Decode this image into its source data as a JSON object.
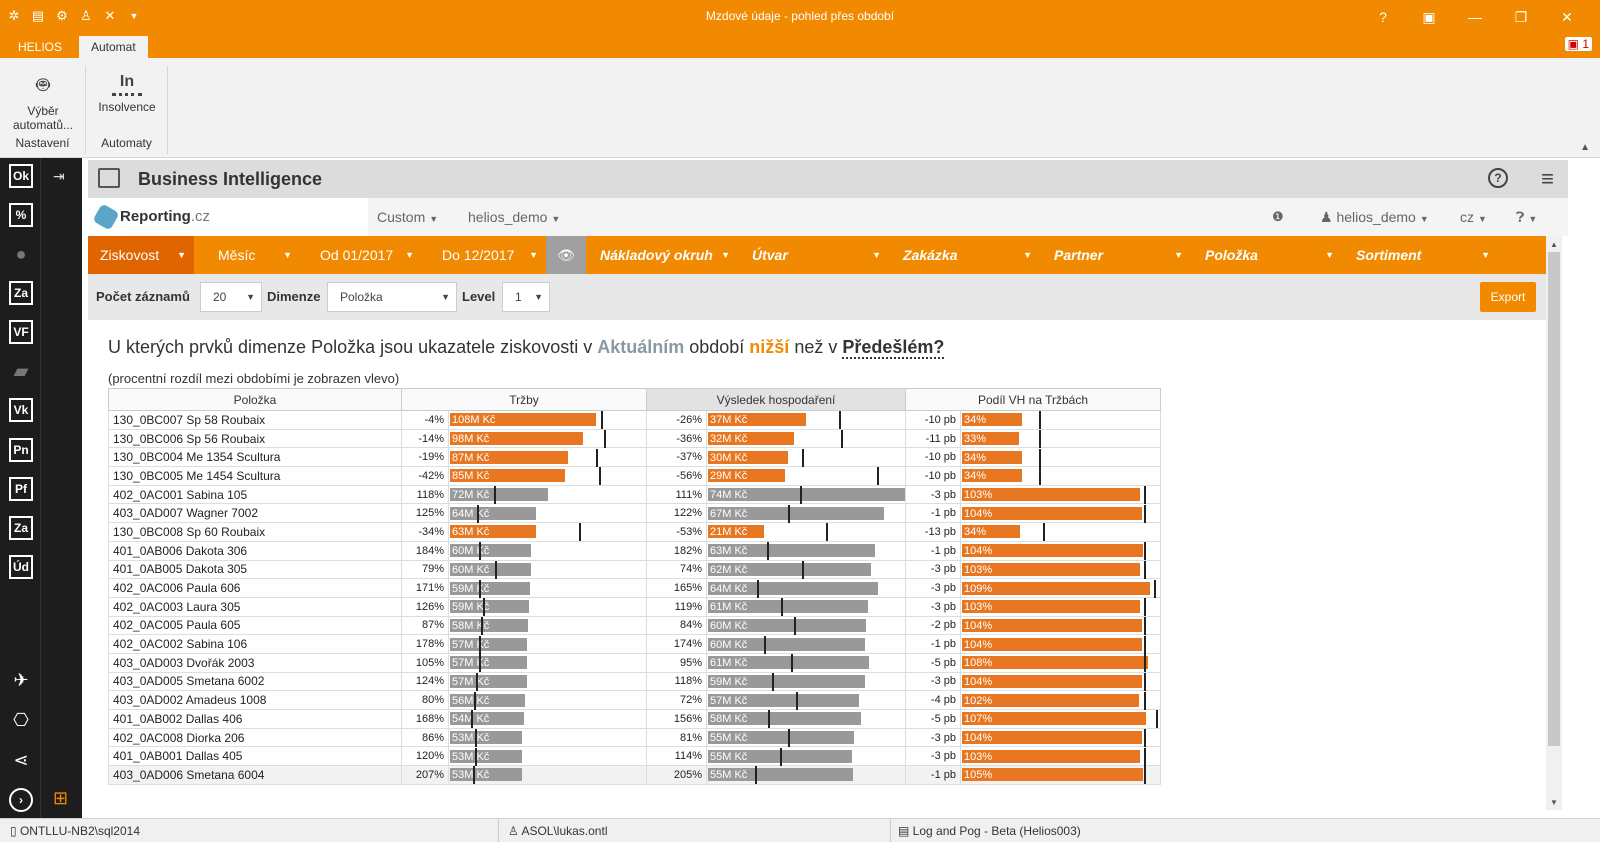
{
  "window": {
    "title": "Mzdové údaje - pohled přes období"
  },
  "ribbon": {
    "tabs": [
      {
        "label": "HELIOS"
      },
      {
        "label": "Automat"
      }
    ],
    "notification_count": "1",
    "groups": [
      {
        "name": "Nastavení",
        "button_label": "Výběr automatů..."
      },
      {
        "name": "Automaty",
        "button_label": "Insolvence",
        "icon_text": "In"
      }
    ]
  },
  "sidebar": {
    "items": [
      {
        "label": "Ok"
      },
      {
        "label": "%"
      },
      {
        "label": ""
      },
      {
        "label": "Za"
      },
      {
        "label": "VF"
      },
      {
        "label": ""
      },
      {
        "label": "Vk"
      },
      {
        "label": "Pn"
      },
      {
        "label": "Pf"
      },
      {
        "label": "Za"
      },
      {
        "label": "Úd"
      }
    ]
  },
  "bi": {
    "title": "Business Intelligence"
  },
  "reporting": {
    "logo_main": "Reporting",
    "logo_suffix": ".cz",
    "nav": {
      "custom": "Custom",
      "user": "helios_demo",
      "account": "helios_demo",
      "lang": "cz"
    }
  },
  "filters": {
    "ziskovost": "Ziskovost",
    "mesic": "Měsíc",
    "od": "Od 01/2017",
    "do": "Do 12/2017",
    "dimensions": [
      "Nákladový okruh",
      "Útvar",
      "Zakázka",
      "Partner",
      "Položka",
      "Sortiment"
    ]
  },
  "controls": {
    "pocet_label": "Počet záznamů",
    "pocet_value": "20",
    "dimenze_label": "Dimenze",
    "dimenze_value": "Položka",
    "level_label": "Level",
    "level_value": "1",
    "export_label": "Export"
  },
  "question": {
    "part1": "U kterých prvků dimenze Položka jsou ukazatele ziskovosti v ",
    "aktualnim": "Aktuálním",
    "part2": " období ",
    "nizsi": "nižší",
    "part3": " než v ",
    "predeslem": "Předešlém?"
  },
  "subnote": "(procentní rozdíl mezi obdobími je zobrazen vlevo)",
  "table": {
    "headers": {
      "polozka": "Položka",
      "trzby": "Tržby",
      "vh": "Výsledek hospodaření",
      "podil": "Podíl VH na Tržbách"
    },
    "rows": [
      {
        "name": "130_0BC007 Sp 58 Roubaix",
        "t_pct": "-4%",
        "t_val": "108M Kč",
        "v_pct": "-26%",
        "v_val": "37M Kč",
        "p_pct": "-10 pb",
        "p_val": "34%"
      },
      {
        "name": "130_0BC006 Sp 56 Roubaix",
        "t_pct": "-14%",
        "t_val": "98M Kč",
        "v_pct": "-36%",
        "v_val": "32M Kč",
        "p_pct": "-11 pb",
        "p_val": "33%"
      },
      {
        "name": "130_0BC004 Me 1354 Scultura",
        "t_pct": "-19%",
        "t_val": "87M Kč",
        "v_pct": "-37%",
        "v_val": "30M Kč",
        "p_pct": "-10 pb",
        "p_val": "34%"
      },
      {
        "name": "130_0BC005 Me 1454 Scultura",
        "t_pct": "-42%",
        "t_val": "85M Kč",
        "v_pct": "-56%",
        "v_val": "29M Kč",
        "p_pct": "-10 pb",
        "p_val": "34%"
      },
      {
        "name": "402_0AC001 Sabina 105",
        "t_pct": "118%",
        "t_val": "72M Kč",
        "v_pct": "111%",
        "v_val": "74M Kč",
        "p_pct": "-3 pb",
        "p_val": "103%"
      },
      {
        "name": "403_0AD007 Wagner 7002",
        "t_pct": "125%",
        "t_val": "64M Kč",
        "v_pct": "122%",
        "v_val": "67M Kč",
        "p_pct": "-1 pb",
        "p_val": "104%"
      },
      {
        "name": "130_0BC008 Sp 60 Roubaix",
        "t_pct": "-34%",
        "t_val": "63M Kč",
        "v_pct": "-53%",
        "v_val": "21M Kč",
        "p_pct": "-13 pb",
        "p_val": "34%"
      },
      {
        "name": "401_0AB006 Dakota 306",
        "t_pct": "184%",
        "t_val": "60M Kč",
        "v_pct": "182%",
        "v_val": "63M Kč",
        "p_pct": "-1 pb",
        "p_val": "104%"
      },
      {
        "name": "401_0AB005 Dakota 305",
        "t_pct": "79%",
        "t_val": "60M Kč",
        "v_pct": "74%",
        "v_val": "62M Kč",
        "p_pct": "-3 pb",
        "p_val": "103%"
      },
      {
        "name": "402_0AC006 Paula 606",
        "t_pct": "171%",
        "t_val": "59M Kč",
        "v_pct": "165%",
        "v_val": "64M Kč",
        "p_pct": "-3 pb",
        "p_val": "109%"
      },
      {
        "name": "402_0AC003 Laura 305",
        "t_pct": "126%",
        "t_val": "59M Kč",
        "v_pct": "119%",
        "v_val": "61M Kč",
        "p_pct": "-3 pb",
        "p_val": "103%"
      },
      {
        "name": "402_0AC005 Paula 605",
        "t_pct": "87%",
        "t_val": "58M Kč",
        "v_pct": "84%",
        "v_val": "60M Kč",
        "p_pct": "-2 pb",
        "p_val": "104%"
      },
      {
        "name": "402_0AC002 Sabina 106",
        "t_pct": "178%",
        "t_val": "57M Kč",
        "v_pct": "174%",
        "v_val": "60M Kč",
        "p_pct": "-1 pb",
        "p_val": "104%"
      },
      {
        "name": "403_0AD003 Dvořák 2003",
        "t_pct": "105%",
        "t_val": "57M Kč",
        "v_pct": "95%",
        "v_val": "61M Kč",
        "p_pct": "-5 pb",
        "p_val": "108%"
      },
      {
        "name": "403_0AD005 Smetana 6002",
        "t_pct": "124%",
        "t_val": "57M Kč",
        "v_pct": "118%",
        "v_val": "59M Kč",
        "p_pct": "-3 pb",
        "p_val": "104%"
      },
      {
        "name": "403_0AD002 Amadeus 1008",
        "t_pct": "80%",
        "t_val": "56M Kč",
        "v_pct": "72%",
        "v_val": "57M Kč",
        "p_pct": "-4 pb",
        "p_val": "102%"
      },
      {
        "name": "401_0AB002 Dallas 406",
        "t_pct": "168%",
        "t_val": "54M Kč",
        "v_pct": "156%",
        "v_val": "58M Kč",
        "p_pct": "-5 pb",
        "p_val": "107%"
      },
      {
        "name": "402_0AC008 Diorka 206",
        "t_pct": "86%",
        "t_val": "53M Kč",
        "v_pct": "81%",
        "v_val": "55M Kč",
        "p_pct": "-3 pb",
        "p_val": "104%"
      },
      {
        "name": "401_0AB001 Dallas 405",
        "t_pct": "120%",
        "t_val": "53M Kč",
        "v_pct": "114%",
        "v_val": "55M Kč",
        "p_pct": "-3 pb",
        "p_val": "103%"
      },
      {
        "name": "403_0AD006 Smetana 6004",
        "t_pct": "207%",
        "t_val": "53M Kč",
        "v_pct": "205%",
        "v_val": "55M Kč",
        "p_pct": "-1 pb",
        "p_val": "105%"
      }
    ]
  },
  "statusbar": {
    "server": "ONTLLU-NB2\\sql2014",
    "user": "ASOL\\lukas.ontl",
    "db": "Log and Pog - Beta (Helios003)"
  },
  "colors": {
    "accent": "#f18a00",
    "bar_orange": "#e87722",
    "bar_gray": "#999999"
  }
}
